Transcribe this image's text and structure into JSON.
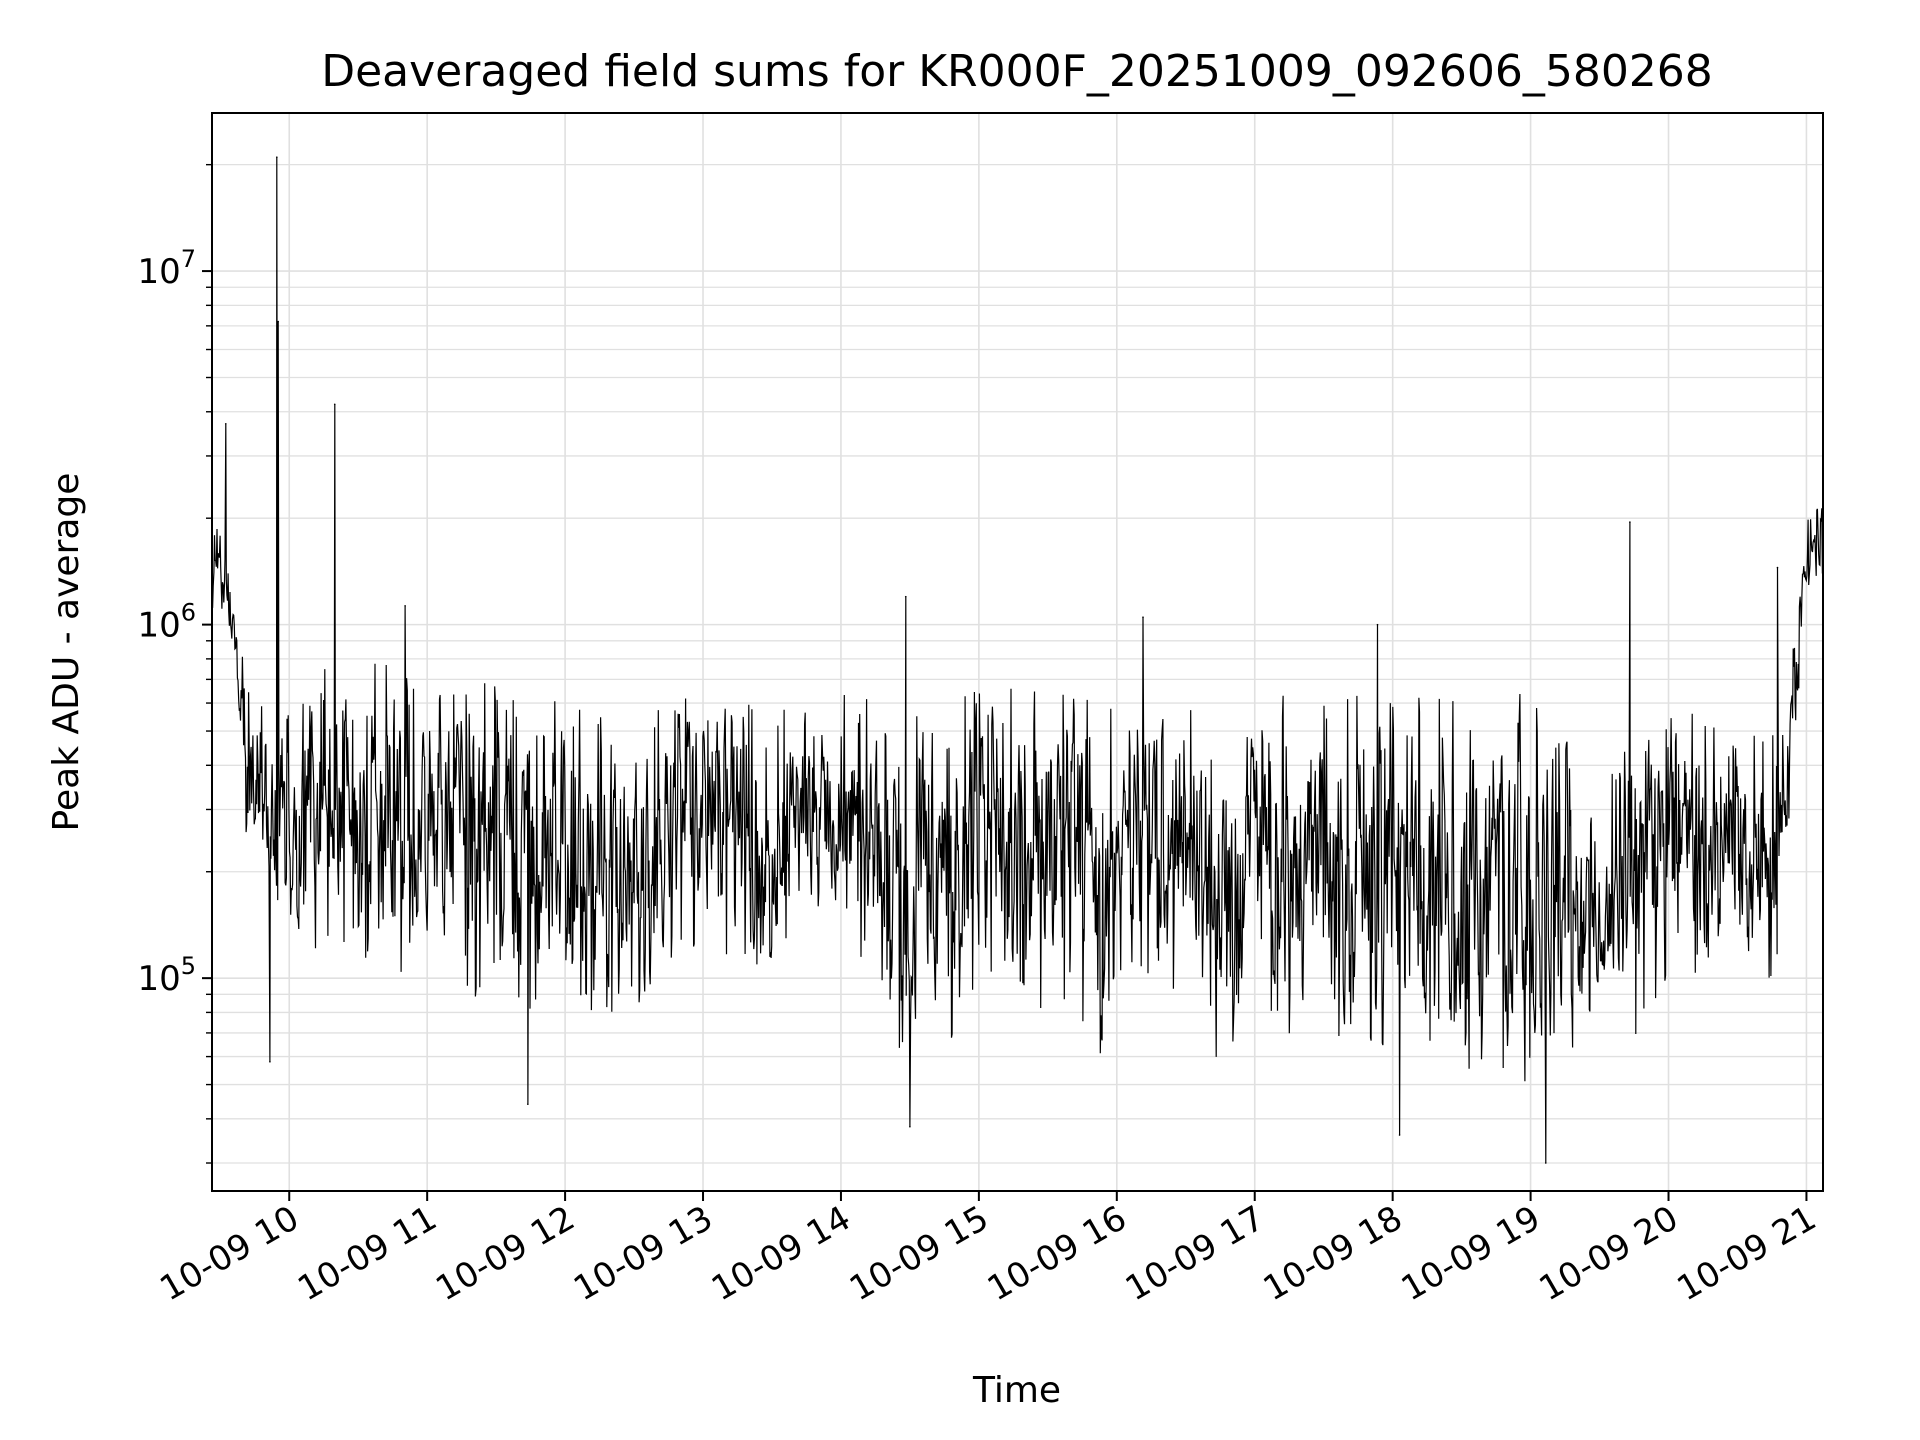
{
  "chart_data": {
    "type": "line",
    "title": "Deaveraged field sums for KR000F_20251009_092606_580268",
    "xlabel": "Time",
    "ylabel": "Peak ADU - average",
    "yscale": "log",
    "ylim": [
      25000,
      28000000
    ],
    "xlim_hours": [
      9.44,
      21.12
    ],
    "grid": true,
    "colors": {
      "line": "#000000",
      "grid": "#e0e0e0",
      "axes": "#000000",
      "background": "#ffffff"
    },
    "x_ticks": [
      {
        "hour": 10,
        "label": "10-09 10"
      },
      {
        "hour": 11,
        "label": "10-09 11"
      },
      {
        "hour": 12,
        "label": "10-09 12"
      },
      {
        "hour": 13,
        "label": "10-09 13"
      },
      {
        "hour": 14,
        "label": "10-09 14"
      },
      {
        "hour": 15,
        "label": "10-09 15"
      },
      {
        "hour": 16,
        "label": "10-09 16"
      },
      {
        "hour": 17,
        "label": "10-09 17"
      },
      {
        "hour": 18,
        "label": "10-09 18"
      },
      {
        "hour": 19,
        "label": "10-09 19"
      },
      {
        "hour": 20,
        "label": "10-09 20"
      },
      {
        "hour": 21,
        "label": "10-09 21"
      }
    ],
    "y_ticks": [
      {
        "value": 100000,
        "base": "10",
        "exp": "5"
      },
      {
        "value": 1000000,
        "base": "10",
        "exp": "6"
      },
      {
        "value": 10000000,
        "base": "10",
        "exp": "7"
      }
    ],
    "series": [
      {
        "name": "Peak ADU - average",
        "envelope": {
          "comment": "Approximate trace envelope read from the figure; values in ADU",
          "t": [
            9.44,
            9.6,
            9.7,
            10.0,
            10.5,
            11.0,
            11.5,
            12.0,
            12.5,
            13.0,
            13.5,
            14.0,
            14.4,
            14.6,
            15.0,
            15.5,
            15.9,
            16.0,
            16.5,
            16.6,
            17.0,
            17.5,
            17.8,
            18.0,
            18.5,
            18.8,
            19.0,
            19.2,
            19.5,
            19.7,
            20.0,
            20.5,
            20.8,
            20.9,
            21.0,
            21.12
          ],
          "low": [
            1000000,
            800000,
            200000,
            120000,
            110000,
            100000,
            80000,
            70000,
            80000,
            120000,
            100000,
            150000,
            60000,
            60000,
            70000,
            70000,
            60000,
            100000,
            90000,
            55000,
            60000,
            70000,
            60000,
            55000,
            55000,
            55000,
            45000,
            50000,
            90000,
            60000,
            90000,
            80000,
            100000,
            400000,
            1200000,
            1300000
          ],
          "high": [
            2500000,
            1200000,
            650000,
            700000,
            800000,
            750000,
            700000,
            600000,
            550000,
            700000,
            600000,
            650000,
            600000,
            600000,
            700000,
            650000,
            600000,
            700000,
            650000,
            700000,
            650000,
            650000,
            650000,
            700000,
            700000,
            650000,
            650000,
            650000,
            250000,
            650000,
            600000,
            500000,
            500000,
            900000,
            2000000,
            2400000
          ]
        },
        "spikes": [
          {
            "t": 9.54,
            "value": 3700000
          },
          {
            "t": 9.91,
            "value": 21000000
          },
          {
            "t": 9.92,
            "value": 7200000
          },
          {
            "t": 10.33,
            "value": 4200000
          },
          {
            "t": 10.84,
            "value": 1130000
          },
          {
            "t": 14.47,
            "value": 1200000
          },
          {
            "t": 16.19,
            "value": 1050000
          },
          {
            "t": 17.89,
            "value": 1000000
          },
          {
            "t": 19.72,
            "value": 1950000
          },
          {
            "t": 20.79,
            "value": 1450000
          },
          {
            "t": 9.86,
            "value": 58000
          },
          {
            "t": 11.73,
            "value": 44000
          },
          {
            "t": 14.5,
            "value": 38000
          },
          {
            "t": 18.05,
            "value": 36000
          },
          {
            "t": 19.11,
            "value": 30000
          }
        ]
      }
    ]
  }
}
